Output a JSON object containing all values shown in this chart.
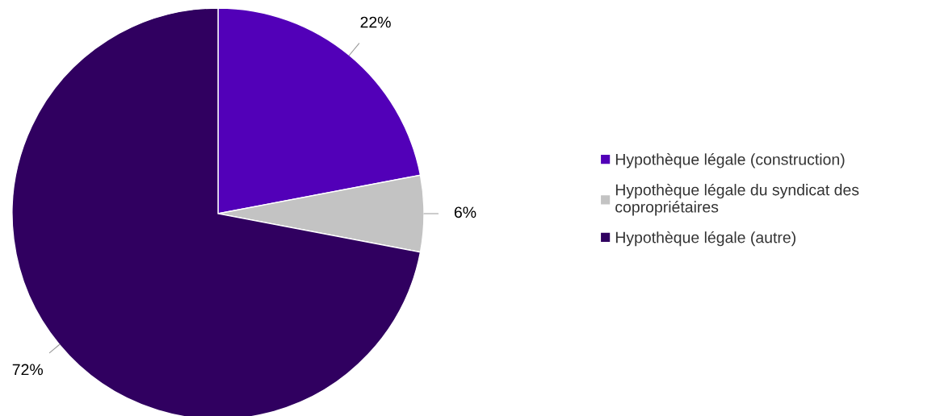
{
  "chart_data": {
    "type": "pie",
    "categories": [
      "Hypothèque légale (construction)",
      "Hypothèque légale du syndicat des copropriétaires",
      "Hypothèque légale (autre)"
    ],
    "values": [
      22,
      6,
      72
    ],
    "colors": [
      "#5200b8",
      "#c3c3c3",
      "#300060"
    ],
    "value_labels": [
      "22%",
      "6%",
      "72%"
    ],
    "legend": "right"
  }
}
